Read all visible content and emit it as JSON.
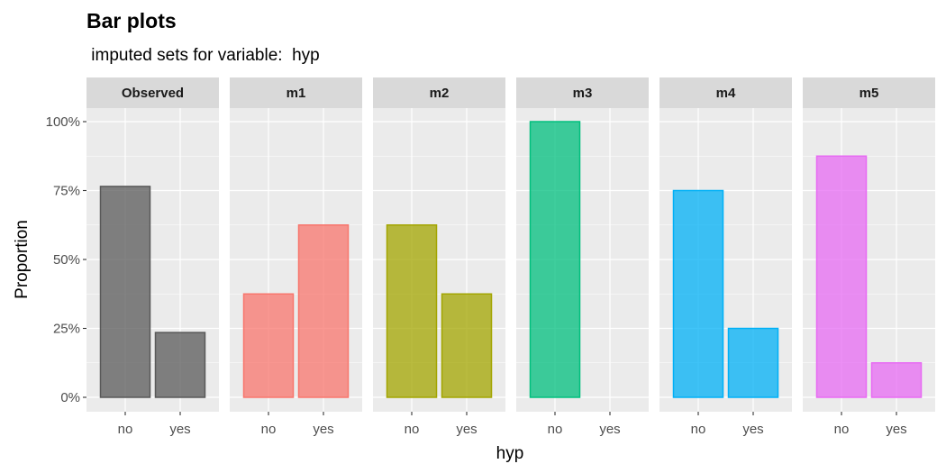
{
  "chart_data": {
    "type": "bar",
    "title": "Bar plots",
    "subtitle": " imputed sets for variable:  hyp",
    "xlabel": "hyp",
    "ylabel": "Proportion",
    "categories": [
      "no",
      "yes"
    ],
    "ylim": [
      0,
      1.1
    ],
    "yticks": [
      0,
      0.25,
      0.5,
      0.75,
      1.0
    ],
    "ytick_labels": [
      "0%",
      "25%",
      "50%",
      "75%",
      "100%"
    ],
    "grid": true,
    "facets": [
      {
        "name": "Observed",
        "values": [
          0.765,
          0.235
        ],
        "color": "#595959"
      },
      {
        "name": "m1",
        "values": [
          0.375,
          0.625
        ],
        "color": "#F8766D"
      },
      {
        "name": "m2",
        "values": [
          0.625,
          0.375
        ],
        "color": "#A3A500"
      },
      {
        "name": "m3",
        "values": [
          1.0,
          0.0
        ],
        "color": "#00BF7D"
      },
      {
        "name": "m4",
        "values": [
          0.75,
          0.25
        ],
        "color": "#00B0F6"
      },
      {
        "name": "m5",
        "values": [
          0.875,
          0.125
        ],
        "color": "#E76BF3"
      }
    ]
  }
}
